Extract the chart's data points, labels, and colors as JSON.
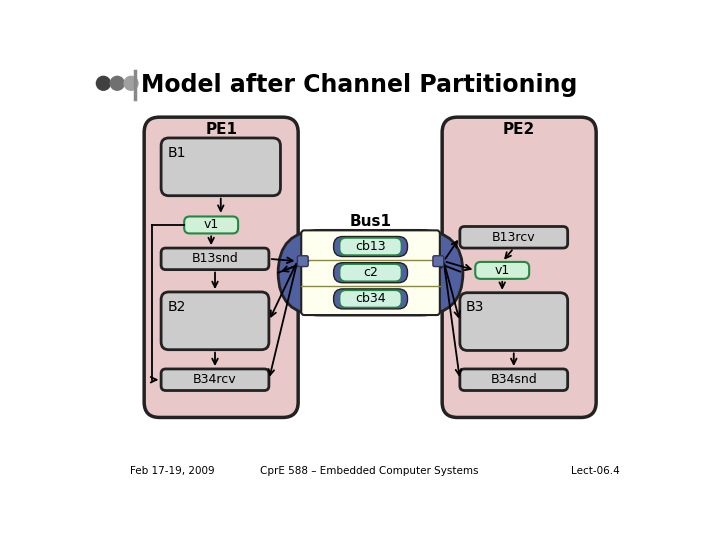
{
  "title": "Model after Channel Partitioning",
  "footer_left": "Feb 17-19, 2009",
  "footer_center": "CprE 588 – Embedded Computer Systems",
  "footer_right": "Lect-06.4",
  "bg_color": "#ffffff",
  "pe_color": "#e8c8c8",
  "block_gray": "#cccccc",
  "block_green": "#d0f0d8",
  "bus_yellow": "#fffff0",
  "bus_blue": "#5060a0",
  "bus_channel_green": "#d0f0e0",
  "connector_color": "#6070a8",
  "circle_colors": [
    "#404040",
    "#707070",
    "#a0a0a0"
  ]
}
